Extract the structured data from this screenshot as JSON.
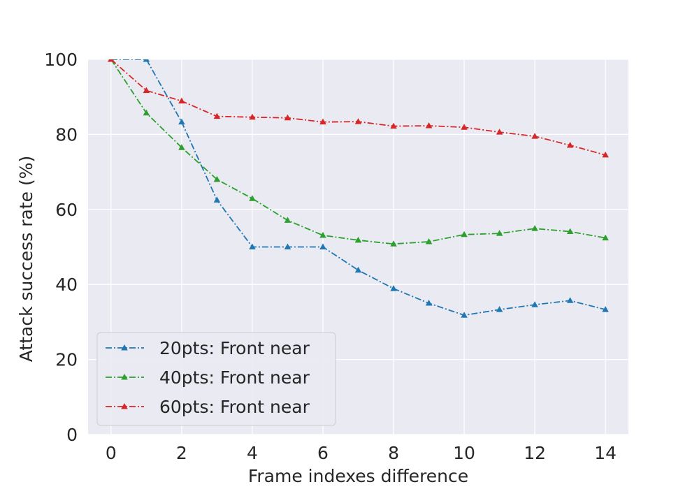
{
  "chart_data": {
    "type": "line",
    "title": "",
    "xlabel": "Frame indexes difference",
    "ylabel": "Attack success rate (%)",
    "xlim": [
      -0.65,
      14.65
    ],
    "ylim": [
      0,
      100
    ],
    "xticks": [
      "0",
      "2",
      "4",
      "6",
      "8",
      "10",
      "12",
      "14"
    ],
    "yticks": [
      "0",
      "20",
      "40",
      "60",
      "80",
      "100"
    ],
    "grid": true,
    "legend_position": "lower-left",
    "x": [
      0,
      1,
      2,
      3,
      4,
      5,
      6,
      7,
      8,
      9,
      10,
      11,
      12,
      13,
      14
    ],
    "series": [
      {
        "name": "20pts: Front near",
        "color": "#1f77b4",
        "values": [
          100,
          100,
          83.3,
          62.5,
          50,
          50,
          50,
          43.8,
          38.9,
          35,
          31.8,
          33.3,
          34.6,
          35.7,
          33.3
        ]
      },
      {
        "name": "40pts: Front near",
        "color": "#2ca02c",
        "values": [
          100,
          85.7,
          76.5,
          68,
          62.9,
          57.1,
          53.1,
          51.8,
          50.8,
          51.4,
          53.3,
          53.6,
          54.9,
          54.1,
          52.4
        ]
      },
      {
        "name": "60pts: Front near",
        "color": "#d62728",
        "values": [
          100,
          91.7,
          88.9,
          84.8,
          84.6,
          84.4,
          83.3,
          83.4,
          82.2,
          82.3,
          81.9,
          80.6,
          79.5,
          77.1,
          74.5
        ]
      }
    ]
  }
}
